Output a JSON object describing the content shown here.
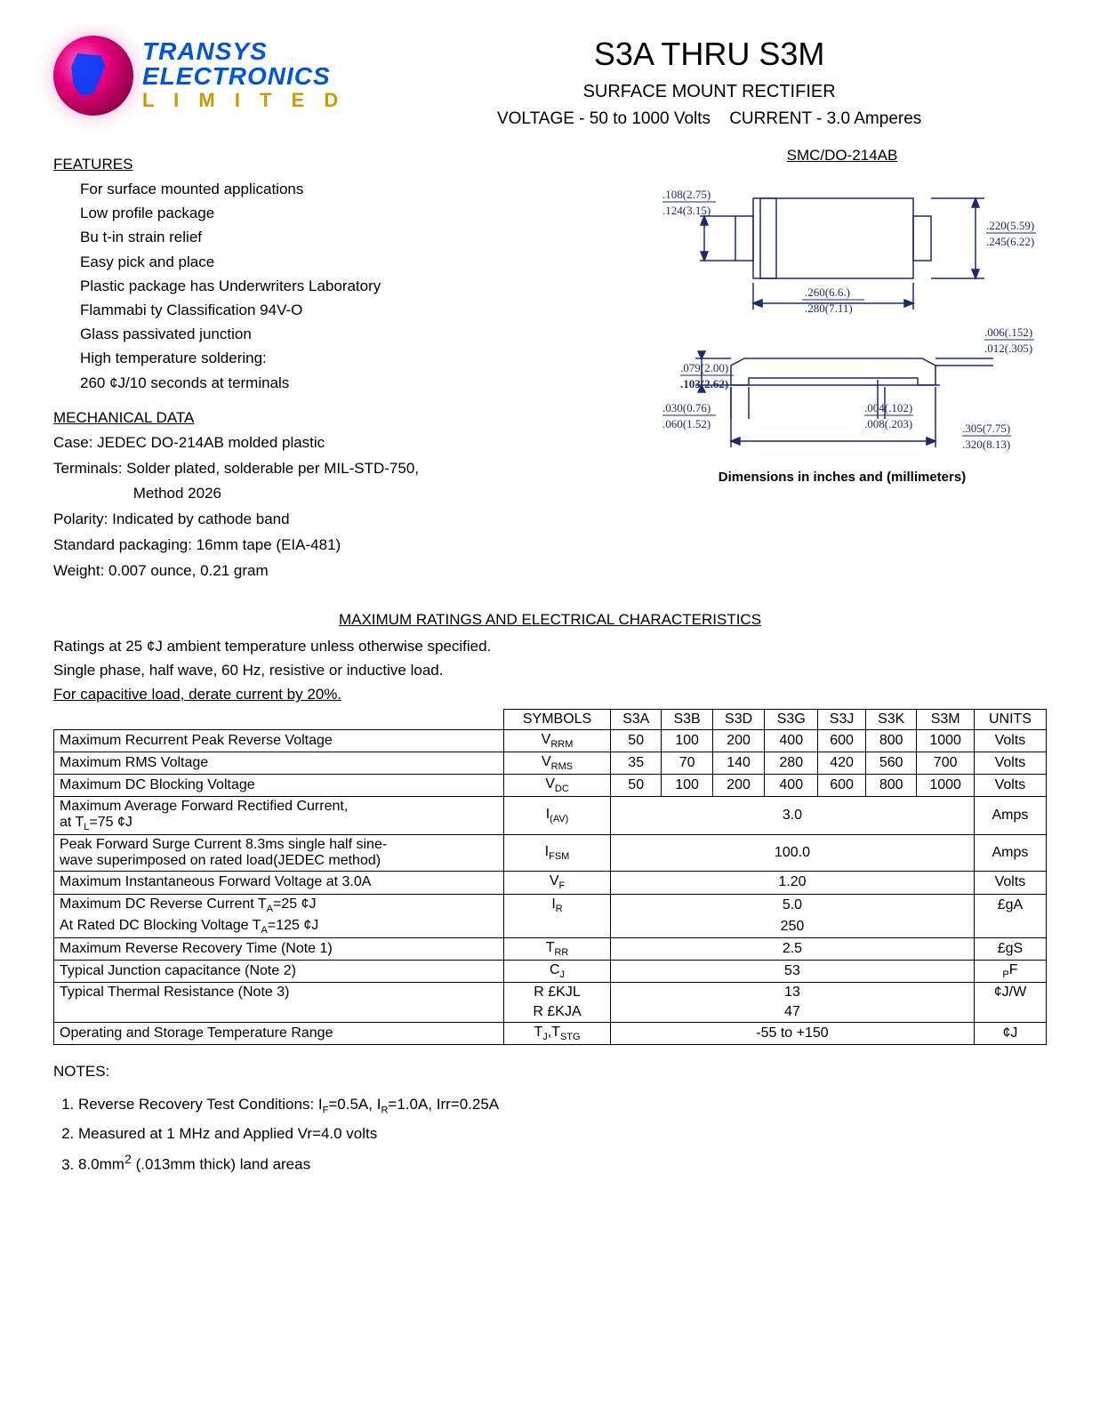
{
  "logo": {
    "line1": "TRANSYS",
    "line2": "ELECTRONICS",
    "line3": "L I M I T E D"
  },
  "title": {
    "main": "S3A THRU S3M",
    "sub": "SURFACE MOUNT RECTIFIER",
    "voltage": "VOLTAGE - 50 to 1000 Volts",
    "current": "CURRENT - 3.0 Amperes"
  },
  "package_label": "SMC/DO-214AB",
  "diagram": {
    "top": {
      "dim_left_top": ".108(2.75)",
      "dim_left_bot": ".124(3.15)",
      "dim_right_top": ".220(5.59)",
      "dim_right_bot": ".245(6.22)",
      "dim_bot_top": ".260(6.6.)",
      "dim_bot_bot": ".280(7.11)"
    },
    "side": {
      "dim_r1_top": ".006(.152)",
      "dim_r1_bot": ".012(.305)",
      "dim_l1_top": ".079(2.00)",
      "dim_l1_bot": ".103(2.62)",
      "dim_l2_top": ".030(0.76)",
      "dim_l2_bot": ".060(1.52)",
      "dim_m_top": ".004(.102)",
      "dim_m_bot": ".008(.203)",
      "dim_r2_top": ".305(7.75)",
      "dim_r2_bot": ".320(8.13)"
    },
    "caption": "Dimensions in inches and (millimeters)"
  },
  "features": {
    "head": "FEATURES",
    "items": [
      "For surface mounted applications",
      "Low profile package",
      "Bu t-in strain relief",
      "Easy pick and place",
      "Plastic package has Underwriters Laboratory",
      " Flammabi ty Classification 94V-O",
      "Glass passivated junction",
      "High temperature soldering:",
      "260 ¢J/10 seconds at terminals"
    ]
  },
  "mechanical": {
    "head": "MECHANICAL DATA",
    "items": [
      "Case: JEDEC DO-214AB molded plastic",
      "Terminals: Solder plated, solderable per MIL-STD-750,",
      "                   Method 2026",
      "Polarity: Indicated by cathode band",
      "Standard packaging: 16mm tape (EIA-481)",
      "Weight: 0.007 ounce, 0.21 gram"
    ]
  },
  "ratings": {
    "head": "MAXIMUM RATINGS AND ELECTRICAL CHARACTERISTICS",
    "intro1": "Ratings at 25 ¢J ambient temperature unless otherwise specified.",
    "intro2": "Single phase, half wave, 60 Hz, resistive or inductive load.",
    "intro3": "For capacitive load, derate current by 20%.",
    "header": {
      "symbols": "SYMBOLS",
      "parts": [
        "S3A",
        "S3B",
        "S3D",
        "S3G",
        "S3J",
        "S3K",
        "S3M"
      ],
      "units": "UNITS"
    },
    "rows": [
      {
        "param": "Maximum Recurrent Peak Reverse Voltage",
        "sym": "V",
        "sub": "RRM",
        "vals": [
          "50",
          "100",
          "200",
          "400",
          "600",
          "800",
          "1000"
        ],
        "unit": "Volts"
      },
      {
        "param": "Maximum RMS Voltage",
        "sym": "V",
        "sub": "RMS",
        "vals": [
          "35",
          "70",
          "140",
          "280",
          "420",
          "560",
          "700"
        ],
        "unit": "Volts"
      },
      {
        "param": "Maximum DC Blocking Voltage",
        "sym": "V",
        "sub": "DC",
        "vals": [
          "50",
          "100",
          "200",
          "400",
          "600",
          "800",
          "1000"
        ],
        "unit": "Volts"
      },
      {
        "param": "Maximum Average Forward Rectified Current,",
        "param2": "at T",
        "param2sub": "L",
        "param2rest": "=75 ¢J",
        "sym": "I",
        "sub": "(AV)",
        "span": "3.0",
        "unit": "Amps"
      },
      {
        "param": "Peak Forward Surge Current 8.3ms single half sine-",
        "param2": "wave superimposed on rated load(JEDEC method)",
        "sym": "I",
        "sub": "FSM",
        "span": "100.0",
        "unit": "Amps"
      },
      {
        "param": "Maximum Instantaneous Forward Voltage at 3.0A",
        "sym": "V",
        "sub": "F",
        "span": "1.20",
        "unit": "Volts"
      },
      {
        "param": "Maximum DC Reverse Current T",
        "paramsub": "A",
        "paramrest": "=25 ¢J",
        "sym": "I",
        "sub": "R",
        "span": "5.0",
        "unit": "£gA"
      },
      {
        "param": "At Rated DC Blocking Voltage T",
        "paramsub": "A",
        "paramrest": "=125 ¢J",
        "sym": "",
        "sub": "",
        "span": "250",
        "unit": ""
      },
      {
        "param": "Maximum Reverse Recovery Time (Note 1)",
        "sym": "T",
        "sub": "RR",
        "span": "2.5",
        "unit": "£gS"
      },
      {
        "param": "Typical Junction capacitance (Note 2)",
        "sym": "C",
        "sub": "J",
        "span": "53",
        "unit_pre": "P",
        "unit": "F"
      },
      {
        "param": "Typical Thermal Resistance    (Note 3)",
        "sym": "R £KJL",
        "sub": "",
        "span": "13",
        "unit": "¢J/W"
      },
      {
        "param": "",
        "sym": "R £KJA",
        "sub": "",
        "span": "47",
        "unit": ""
      },
      {
        "param": "Operating and Storage Temperature Range",
        "sym": "T",
        "sub": "J",
        "sym2": ",T",
        "sub2": "STG",
        "span": "-55 to +150",
        "unit": "¢J"
      }
    ]
  },
  "notes": {
    "head": "NOTES:",
    "items": [
      {
        "pre": "Reverse Recovery Test Conditions: I",
        "s1": "F",
        "mid1": "=0.5A, I",
        "s2": "R",
        "mid2": "=1.0A, Irr=0.25A"
      },
      {
        "pre": "Measured at 1 MHz and Applied Vr=4.0 volts"
      },
      {
        "pre": "8.0mm",
        "sup": "2",
        "mid1": " (.013mm thick) land areas"
      }
    ]
  }
}
